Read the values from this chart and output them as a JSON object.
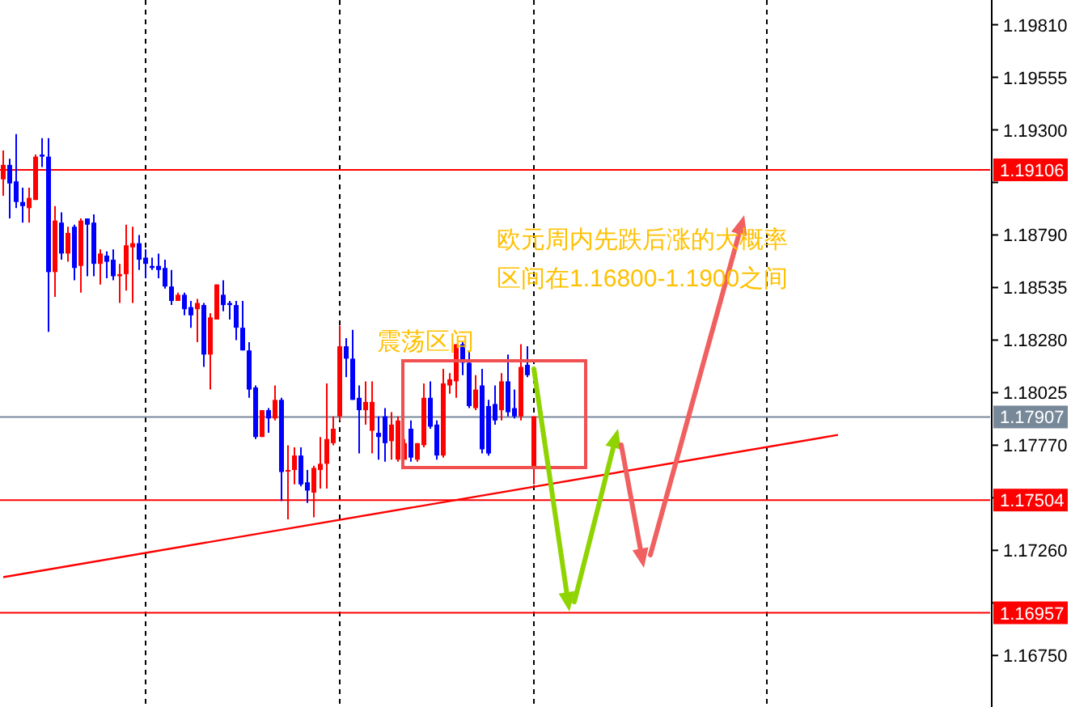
{
  "chart_data": {
    "type": "candlestick",
    "categories": [
      null,
      null,
      null,
      null,
      null,
      null,
      null,
      null,
      null,
      null,
      null,
      null,
      null,
      null,
      null,
      null,
      null,
      null,
      null,
      null,
      null,
      null,
      null,
      null,
      null,
      null,
      null,
      null,
      null,
      null,
      null,
      null,
      null,
      null,
      null,
      null,
      null,
      null,
      null,
      null,
      null,
      null,
      null,
      null,
      null,
      null,
      null,
      null,
      null,
      null,
      null,
      null,
      null,
      null,
      null,
      null,
      null,
      null,
      null,
      null,
      null,
      null,
      null,
      null,
      null,
      null,
      null,
      null,
      null,
      null,
      null,
      null,
      null,
      null,
      null,
      null,
      null,
      null,
      null,
      null,
      null,
      null,
      null,
      null,
      null,
      null,
      null,
      null,
      null,
      null,
      null,
      null,
      null,
      null,
      null,
      null,
      null,
      null,
      null,
      null,
      null,
      null,
      null,
      null,
      null,
      null,
      null,
      null,
      null,
      null,
      null,
      null,
      null,
      null,
      null,
      null,
      null,
      null,
      null,
      null,
      null,
      null,
      null,
      null,
      null,
      null,
      null,
      null,
      null,
      null,
      null,
      null,
      null,
      null,
      null,
      null,
      null,
      null,
      null,
      null,
      null,
      null,
      null,
      null,
      null,
      null,
      null,
      null,
      null,
      null,
      null,
      null,
      null
    ],
    "ohlc": [
      [
        1.1906,
        1.192,
        1.1898,
        1.1913
      ],
      [
        1.1913,
        1.1916,
        1.1887,
        1.1904
      ],
      [
        1.1905,
        1.1928,
        1.1892,
        1.1895
      ],
      [
        1.1895,
        1.1902,
        1.1885,
        1.1893
      ],
      [
        1.1892,
        1.1902,
        1.1885,
        1.1897
      ],
      [
        1.1896,
        1.1918,
        1.1896,
        1.1917
      ],
      [
        1.1918,
        1.1926,
        1.1912,
        1.1917
      ],
      [
        1.1917,
        1.1926,
        1.1832,
        1.1861
      ],
      [
        1.1861,
        1.1893,
        1.1849,
        1.1886
      ],
      [
        1.1885,
        1.189,
        1.1867,
        1.187
      ],
      [
        1.187,
        1.1883,
        1.1866,
        1.188
      ],
      [
        1.1883,
        1.1884,
        1.1857,
        1.1863
      ],
      [
        1.1864,
        1.1887,
        1.1851,
        1.1886
      ],
      [
        1.1887,
        1.1887,
        1.1859,
        1.1884
      ],
      [
        1.1885,
        1.1889,
        1.1859,
        1.1865
      ],
      [
        1.1865,
        1.1872,
        1.1855,
        1.187
      ],
      [
        1.1869,
        1.1871,
        1.1858,
        1.1866
      ],
      [
        1.1867,
        1.1872,
        1.1857,
        1.1859
      ],
      [
        1.1859,
        1.1865,
        1.1846,
        1.186
      ],
      [
        1.186,
        1.1884,
        1.1852,
        1.1874
      ],
      [
        1.1873,
        1.1883,
        1.1846,
        1.1875
      ],
      [
        1.1875,
        1.1879,
        1.1862,
        1.1867
      ],
      [
        1.1868,
        1.1872,
        1.1858,
        1.1865
      ],
      [
        1.1864,
        1.1868,
        1.1862,
        1.1863
      ],
      [
        1.1864,
        1.187,
        1.1858,
        1.1862
      ],
      [
        1.1863,
        1.1867,
        1.1853,
        1.1854
      ],
      [
        1.1854,
        1.1862,
        1.1845,
        1.1847
      ],
      [
        1.1847,
        1.1851,
        1.1847,
        1.185
      ],
      [
        1.185,
        1.1851,
        1.184,
        1.1843
      ],
      [
        1.1844,
        1.1847,
        1.1834,
        1.184
      ],
      [
        1.1843,
        1.1848,
        1.1827,
        1.1846
      ],
      [
        1.1845,
        1.1846,
        1.1815,
        1.1821
      ],
      [
        1.1821,
        1.1841,
        1.1804,
        1.1839
      ],
      [
        1.1838,
        1.1855,
        1.1838,
        1.1855
      ],
      [
        1.185,
        1.1857,
        1.1842,
        1.1845
      ],
      [
        1.1846,
        1.1847,
        1.1838,
        1.1845
      ],
      [
        1.1845,
        1.1847,
        1.1828,
        1.1834
      ],
      [
        1.1834,
        1.1847,
        1.1823,
        1.1823
      ],
      [
        1.1823,
        1.1827,
        1.18,
        1.1804
      ],
      [
        1.1805,
        1.1806,
        1.178,
        1.1781
      ],
      [
        1.1781,
        1.1794,
        1.1781,
        1.1794
      ],
      [
        1.1794,
        1.1795,
        1.1783,
        1.179
      ],
      [
        1.179,
        1.1806,
        1.1789,
        1.1799
      ],
      [
        1.1799,
        1.18,
        1.175,
        1.1764
      ],
      [
        1.1765,
        1.1777,
        1.1741,
        1.1765
      ],
      [
        1.1765,
        1.1776,
        1.1758,
        1.1772
      ],
      [
        1.1772,
        1.1776,
        1.1757,
        1.1758
      ],
      [
        1.1759,
        1.1765,
        1.1749,
        1.1755
      ],
      [
        1.1754,
        1.1767,
        1.1742,
        1.1766
      ],
      [
        1.1765,
        1.1781,
        1.1756,
        1.1768
      ],
      [
        1.1768,
        1.1807,
        1.1756,
        1.178
      ],
      [
        1.1778,
        1.1791,
        1.1777,
        1.1785
      ],
      [
        1.1791,
        1.1835,
        1.1789,
        1.1825
      ],
      [
        1.1825,
        1.1829,
        1.181,
        1.1819
      ],
      [
        1.1819,
        1.1833,
        1.1799,
        1.1799
      ],
      [
        1.18,
        1.1806,
        1.1773,
        1.1794
      ],
      [
        1.1794,
        1.1808,
        1.1787,
        1.1798
      ],
      [
        1.1784,
        1.1808,
        1.1773,
        1.1798
      ],
      [
        1.1783,
        1.1791,
        1.177,
        1.1781
      ],
      [
        1.1791,
        1.1795,
        1.1769,
        1.1778
      ],
      [
        1.1779,
        1.1793,
        1.177,
        1.1787
      ],
      [
        1.177,
        1.1791,
        1.1769,
        1.1789
      ],
      [
        1.177,
        1.178,
        1.177,
        1.1778
      ],
      [
        1.1785,
        1.1789,
        1.1769,
        1.1771
      ],
      [
        1.177,
        1.1778,
        1.1769,
        1.1778
      ],
      [
        1.1777,
        1.1807,
        1.1776,
        1.18
      ],
      [
        1.18,
        1.1808,
        1.1785,
        1.1786
      ],
      [
        1.1787,
        1.1789,
        1.177,
        1.1772
      ],
      [
        1.1772,
        1.1814,
        1.1771,
        1.1807
      ],
      [
        1.1806,
        1.1812,
        1.1802,
        1.1809
      ],
      [
        1.1808,
        1.1826,
        1.18,
        1.1826
      ],
      [
        1.1826,
        1.1827,
        1.1811,
        1.1817
      ],
      [
        1.1817,
        1.1823,
        1.1795,
        1.1796
      ],
      [
        1.1795,
        1.1811,
        1.1794,
        1.1804
      ],
      [
        1.1806,
        1.1814,
        1.1773,
        1.1775
      ],
      [
        1.1796,
        1.1799,
        1.1772,
        1.1773
      ],
      [
        1.1797,
        1.1806,
        1.1787,
        1.1789
      ],
      [
        1.1794,
        1.1812,
        1.1789,
        1.1808
      ],
      [
        1.1808,
        1.1821,
        1.1791,
        1.1793
      ],
      [
        1.1795,
        1.1804,
        1.179,
        1.1791
      ],
      [
        1.1791,
        1.1826,
        1.1789,
        1.1815
      ],
      [
        1.1816,
        1.1825,
        1.181,
        1.1811
      ],
      [
        1.1766,
        1.1791,
        1.1758,
        1.1791
      ],
      null,
      null,
      null,
      null,
      null,
      null,
      null,
      null,
      null,
      null,
      null,
      null,
      null,
      null,
      null,
      null,
      null,
      null,
      null,
      null,
      null,
      null,
      null,
      null,
      null,
      null,
      null,
      null,
      null,
      null,
      null,
      null,
      null,
      null,
      null,
      null,
      null,
      null,
      null,
      null,
      null,
      null,
      null,
      null,
      null,
      null,
      null,
      null,
      null,
      null,
      null,
      null,
      null,
      null,
      null,
      null,
      null,
      null,
      null,
      null,
      null,
      null,
      null,
      null,
      null,
      null,
      null,
      null,
      null,
      null
    ],
    "colors": [
      "#ff0000",
      "#0000ff",
      "#0000ff",
      "#0000ff",
      "#ff0000",
      "#ff0000",
      "#0000ff",
      "#0000ff",
      "#ff0000",
      "#0000ff",
      "#ff0000",
      "#0000ff",
      "#ff0000",
      "#0000ff",
      "#0000ff",
      "#ff0000",
      "#0000ff",
      "#0000ff",
      "#ff0000",
      "#ff0000",
      "#ff0000",
      "#0000ff",
      "#0000ff",
      "#0000ff",
      "#0000ff",
      "#0000ff",
      "#0000ff",
      "#ff0000",
      "#0000ff",
      "#0000ff",
      "#ff0000",
      "#0000ff",
      "#ff0000",
      "#ff0000",
      "#0000ff",
      "#0000ff",
      "#0000ff",
      "#0000ff",
      "#0000ff",
      "#0000ff",
      "#ff0000",
      "#0000ff",
      "#ff0000",
      "#0000ff",
      "#ff0000",
      "#ff0000",
      "#0000ff",
      "#0000ff",
      "#ff0000",
      "#ff0000",
      "#ff0000",
      "#ff0000",
      "#ff0000",
      "#0000ff",
      "#0000ff",
      "#0000ff",
      "#ff0000",
      "#ff0000",
      "#0000ff",
      "#0000ff",
      "#ff0000",
      "#ff0000",
      "#ff0000",
      "#0000ff",
      "#ff0000",
      "#ff0000",
      "#0000ff",
      "#0000ff",
      "#ff0000",
      "#ff0000",
      "#ff0000",
      "#0000ff",
      "#0000ff",
      "#ff0000",
      "#0000ff",
      "#0000ff",
      "#0000ff",
      "#ff0000",
      "#0000ff",
      "#0000ff",
      "#ff0000",
      "#0000ff",
      "#ff0000",
      null,
      null,
      null,
      null,
      null,
      null,
      null,
      null,
      null,
      null,
      null,
      null,
      null,
      null,
      null,
      null,
      null,
      null,
      null,
      null,
      null,
      null,
      null,
      null,
      null,
      null,
      null,
      null,
      null,
      null,
      null,
      null,
      null,
      null,
      null,
      null,
      null,
      null,
      null,
      null,
      null,
      null,
      null,
      null,
      null,
      null,
      null,
      null,
      null,
      null,
      null,
      null,
      null,
      null,
      null,
      null,
      null,
      null,
      null,
      null,
      null,
      null,
      null,
      null,
      null,
      null,
      null,
      null,
      null,
      null
    ],
    "series": [
      {
        "type": "line",
        "color": "#ff0000",
        "values": [
          1.1713,
          null,
          null,
          null,
          null,
          null,
          null,
          null,
          null,
          null,
          null,
          null,
          null,
          null,
          null,
          null,
          null,
          null,
          null,
          null,
          null,
          null,
          null,
          null,
          null,
          null,
          null,
          null,
          null,
          null,
          null,
          null,
          null,
          null,
          null,
          null,
          null,
          null,
          null,
          null,
          null,
          null,
          null,
          null,
          null,
          null,
          null,
          null,
          null,
          null,
          null,
          null,
          null,
          null,
          null,
          null,
          null,
          null,
          null,
          null,
          null,
          null,
          null,
          null,
          null,
          null,
          null,
          null,
          null,
          null,
          null,
          null,
          null,
          null,
          null,
          null,
          null,
          null,
          null,
          null,
          null,
          null,
          null,
          null,
          null,
          null,
          null,
          null,
          null,
          null,
          null,
          null,
          null,
          null,
          null,
          null,
          null,
          null,
          null,
          null,
          null,
          null,
          null,
          null,
          null,
          null,
          null,
          null,
          null,
          null,
          null,
          null,
          null,
          null,
          null,
          null,
          null,
          null,
          null,
          null,
          null,
          null,
          null,
          null,
          null,
          null,
          null,
          null,
          null,
          1.1782,
          null,
          null,
          null,
          null,
          null,
          null,
          null,
          null,
          null,
          null,
          null,
          null,
          null,
          null,
          null,
          null,
          null,
          null,
          null,
          null,
          null,
          null,
          null
        ]
      }
    ],
    "ylim": [
      1.165,
      1.1993
    ],
    "yticks": [
      {
        "value": 1.1981,
        "label": "1.19810"
      },
      1.19555,
      {
        "value": 1.193,
        "label": "1.19300"
      },
      {
        "value": 1.19045,
        "label": null
      },
      {
        "value": 1.1879,
        "label": "1.18790"
      },
      1.18535,
      {
        "value": 1.1828,
        "label": "1.18280"
      },
      1.18025,
      {
        "value": 1.1777,
        "label": "1.17770"
      },
      {
        "value": 1.17515,
        "label": null
      },
      {
        "value": 1.1726,
        "label": "1.17260"
      },
      {
        "value": 1.17005,
        "label": null
      },
      {
        "value": 1.1675,
        "label": "1.16750"
      }
    ],
    "ref_lines": [
      {
        "axis": "y",
        "value": 1.19106,
        "label": "1.19106",
        "color": "#ff0000"
      },
      {
        "axis": "y",
        "value": 1.17907,
        "label": "1.17907",
        "color": "#778899"
      },
      {
        "axis": "y",
        "value": 1.17504,
        "label": "1.17504",
        "color": "#ff0000"
      },
      {
        "axis": "y",
        "value": 1.16957,
        "label": "1.16957",
        "color": "#ff0000"
      }
    ],
    "annotations": [
      "震荡区间",
      "欧元周内先跌后涨的大概率",
      "区间在1.16800-1.1900之间"
    ],
    "grid": false
  }
}
